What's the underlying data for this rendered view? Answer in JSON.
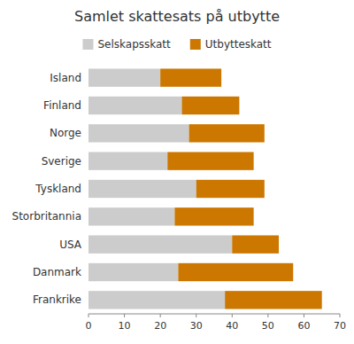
{
  "chart_data": {
    "type": "bar",
    "orientation": "horizontal",
    "stacked": true,
    "title": "Samlet skattesats på utbytte",
    "categories": [
      "Island",
      "Finland",
      "Norge",
      "Sverige",
      "Tyskland",
      "Storbritannia",
      "USA",
      "Danmark",
      "Frankrike"
    ],
    "series": [
      {
        "name": "Selskapsskatt",
        "color": "#cccccc",
        "values": [
          20,
          26,
          28,
          22,
          30,
          24,
          40,
          25,
          38
        ]
      },
      {
        "name": "Utbytteskatt",
        "color": "#cc7700",
        "values": [
          17,
          16,
          21,
          24,
          19,
          22,
          13,
          32,
          27
        ]
      }
    ],
    "xlim": [
      0,
      70
    ],
    "xticks": [
      0,
      10,
      20,
      30,
      40,
      50,
      60,
      70
    ],
    "grid": false,
    "legend": "top"
  }
}
